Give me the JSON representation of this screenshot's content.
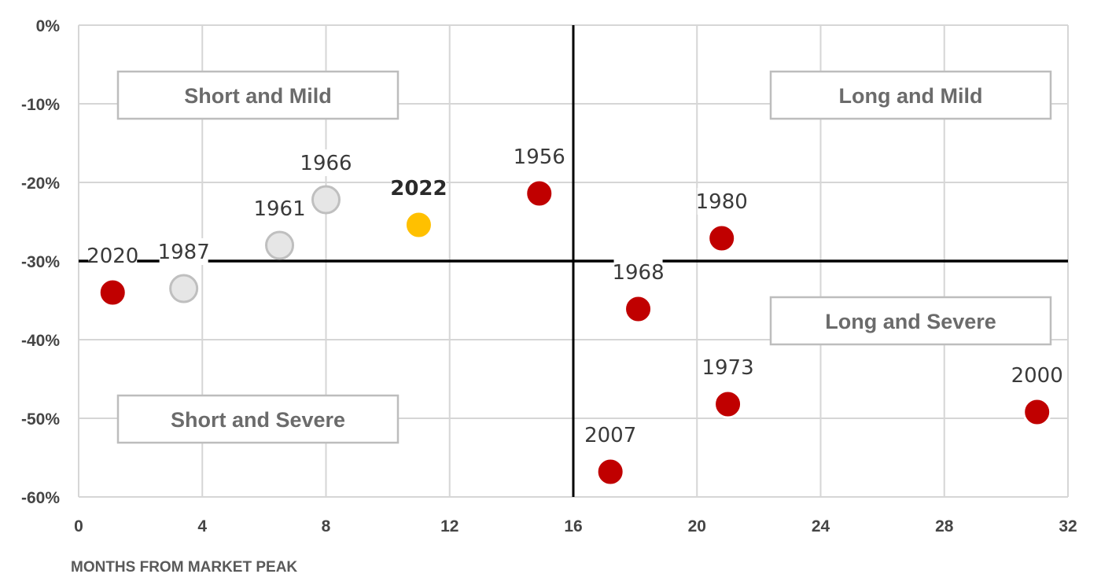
{
  "chart_data": {
    "type": "scatter",
    "xlabel": "MONTHS FROM MARKET PEAK",
    "ylabel": "",
    "xlim": [
      0,
      32
    ],
    "ylim": [
      -60,
      0
    ],
    "x_ticks": [
      0,
      4,
      8,
      12,
      16,
      20,
      24,
      28,
      32
    ],
    "x_tick_labels": [
      "0",
      "4",
      "8",
      "12",
      "16",
      "20",
      "24",
      "28",
      "32"
    ],
    "y_ticks": [
      0,
      -10,
      -20,
      -30,
      -40,
      -50,
      -60
    ],
    "y_tick_labels": [
      "0%",
      "-10%",
      "-20%",
      "-30%",
      "-40%",
      "-50%",
      "-60%"
    ],
    "grid": true,
    "reference_lines": {
      "x": 16,
      "y": -30
    },
    "quadrants": [
      {
        "label": "Short and Mild",
        "position": "top-left"
      },
      {
        "label": "Long and Mild",
        "position": "top-right"
      },
      {
        "label": "Short and Severe",
        "position": "bottom-left"
      },
      {
        "label": "Long and Severe",
        "position": "bottom-right"
      }
    ],
    "colors": {
      "red": "#c00000",
      "gray": "#e6e6e6",
      "highlight": "#ffc000"
    },
    "points": [
      {
        "label": "2020",
        "x": 1.1,
        "y": -34,
        "color": "red"
      },
      {
        "label": "1987",
        "x": 3.4,
        "y": -33.5,
        "color": "gray"
      },
      {
        "label": "1961",
        "x": 6.5,
        "y": -28,
        "color": "gray"
      },
      {
        "label": "1966",
        "x": 8.0,
        "y": -22.2,
        "color": "gray"
      },
      {
        "label": "2022",
        "x": 11.0,
        "y": -25.4,
        "color": "highlight",
        "bold": true
      },
      {
        "label": "1956",
        "x": 14.9,
        "y": -21.4,
        "color": "red"
      },
      {
        "label": "1980",
        "x": 20.8,
        "y": -27.1,
        "color": "red"
      },
      {
        "label": "1968",
        "x": 18.1,
        "y": -36.1,
        "color": "red"
      },
      {
        "label": "1973",
        "x": 21.0,
        "y": -48.2,
        "color": "red"
      },
      {
        "label": "2000",
        "x": 31.0,
        "y": -49.2,
        "color": "red"
      },
      {
        "label": "2007",
        "x": 17.2,
        "y": -56.8,
        "color": "red"
      }
    ]
  }
}
